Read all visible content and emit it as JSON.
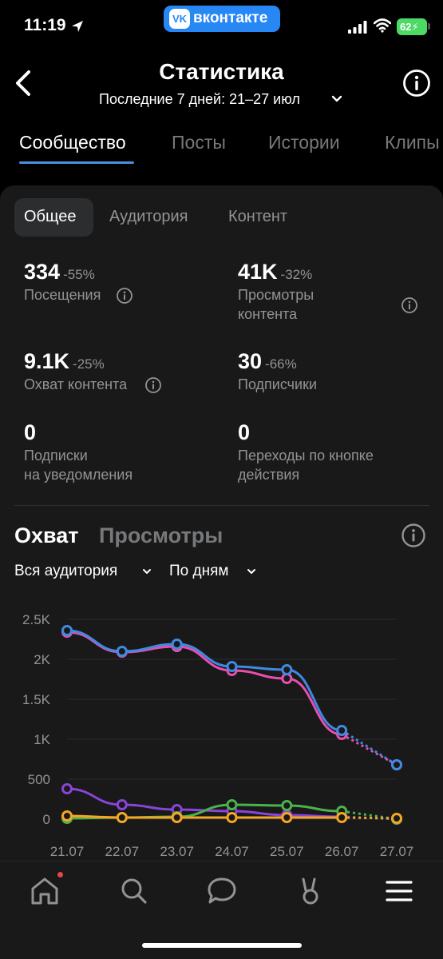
{
  "status_bar": {
    "time": "11:19",
    "app_banner": "вконтакте",
    "app_logo": "VK",
    "battery": "62"
  },
  "header": {
    "title": "Статистика",
    "period": "Последние 7 дней: 21–27 июл"
  },
  "tabs": [
    {
      "label": "Сообщество"
    },
    {
      "label": "Посты"
    },
    {
      "label": "Истории"
    },
    {
      "label": "Клипы"
    }
  ],
  "subtabs": [
    {
      "label": "Общее"
    },
    {
      "label": "Аудитория"
    },
    {
      "label": "Контент"
    }
  ],
  "metrics": [
    {
      "value": "334",
      "delta": "-55%",
      "label": "Посещения"
    },
    {
      "value": "41K",
      "delta": "-32%",
      "label_line1": "Просмотры",
      "label_line2": "контента"
    },
    {
      "value": "9.1K",
      "delta": "-25%",
      "label": "Охват контента"
    },
    {
      "value": "30",
      "delta": "-66%",
      "label": "Подписчики"
    },
    {
      "value": "0",
      "label_line1": "Подписки",
      "label_line2": "на уведомления"
    },
    {
      "value": "0",
      "label_line1": "Переходы по кнопке",
      "label_line2": "действия"
    }
  ],
  "chart_section": {
    "tabs": [
      {
        "label": "Охват"
      },
      {
        "label": "Просмотры"
      }
    ],
    "filters": [
      {
        "label": "Вся аудитория"
      },
      {
        "label": "По дням"
      }
    ]
  },
  "chart_data": {
    "type": "line",
    "x": [
      "21.07",
      "22.07",
      "23.07",
      "24.07",
      "25.07",
      "26.07",
      "27.07"
    ],
    "y_ticks": [
      "0",
      "500",
      "1K",
      "1.5K",
      "2K",
      "2.5K"
    ],
    "ylim": [
      0,
      2500
    ],
    "grid": true,
    "series": [
      {
        "color": "#e64fb0",
        "values": [
          2340,
          2090,
          2160,
          1860,
          1760,
          1060,
          680
        ]
      },
      {
        "color": "#3f8ae0",
        "values": [
          2360,
          2100,
          2190,
          1910,
          1870,
          1110,
          680
        ]
      },
      {
        "color": "#8a44d8",
        "values": [
          380,
          180,
          120,
          100,
          50,
          30,
          0
        ]
      },
      {
        "color": "#4bb34b",
        "values": [
          10,
          20,
          30,
          180,
          170,
          100,
          0
        ]
      },
      {
        "color": "#f5a623",
        "values": [
          40,
          20,
          20,
          20,
          20,
          20,
          10
        ]
      }
    ],
    "dashed_segment_from_index": 5
  }
}
